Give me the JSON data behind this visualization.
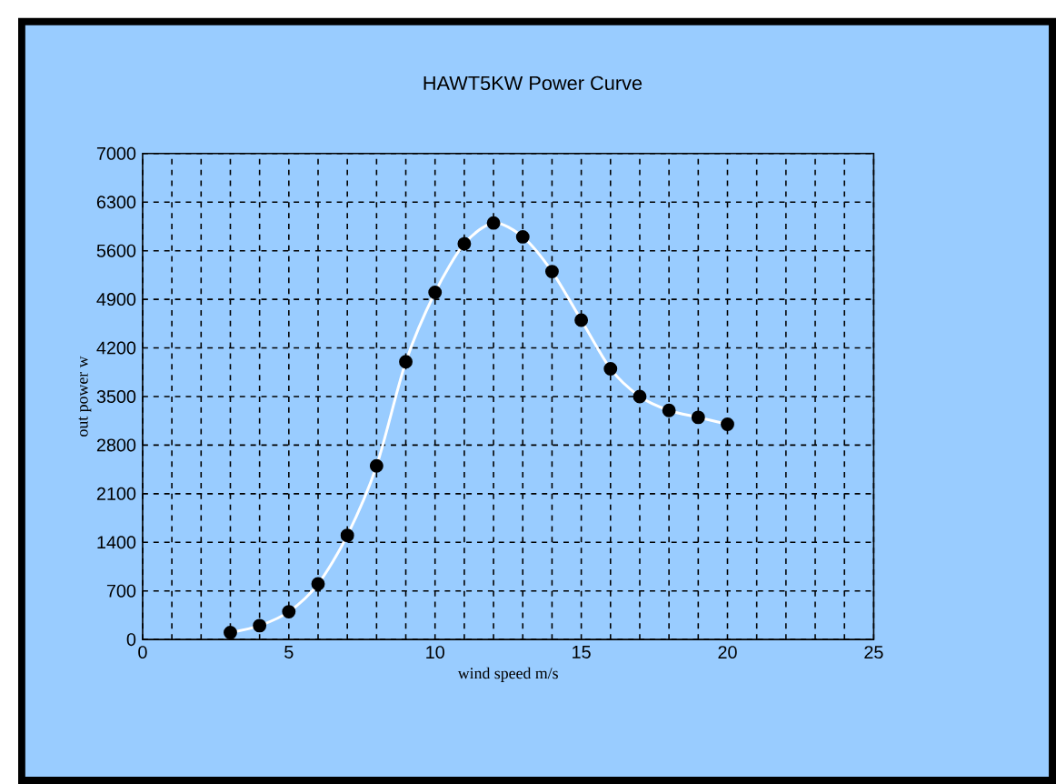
{
  "chart_data": {
    "type": "line",
    "title": "HAWT5KW Power Curve",
    "xlabel": "wind speed m/s",
    "ylabel": "out power w",
    "x": [
      3,
      4,
      5,
      6,
      7,
      8,
      9,
      10,
      11,
      12,
      13,
      14,
      15,
      16,
      17,
      18,
      19,
      20
    ],
    "series": [
      {
        "color": "#ffffff",
        "values": [
          100,
          200,
          400,
          800,
          1500,
          2500,
          4000,
          5000,
          5700,
          6000,
          5800,
          5300,
          4600,
          3900,
          3500,
          3300,
          3200,
          3100
        ]
      }
    ],
    "xlim": [
      0,
      25
    ],
    "xticks": [
      0,
      5,
      10,
      15,
      20,
      25
    ],
    "ylim": [
      0,
      7000
    ],
    "yticks": [
      0,
      700,
      1400,
      2100,
      2800,
      3500,
      4200,
      4900,
      5600,
      6300,
      7000
    ],
    "grid": true,
    "marker": "circle"
  }
}
